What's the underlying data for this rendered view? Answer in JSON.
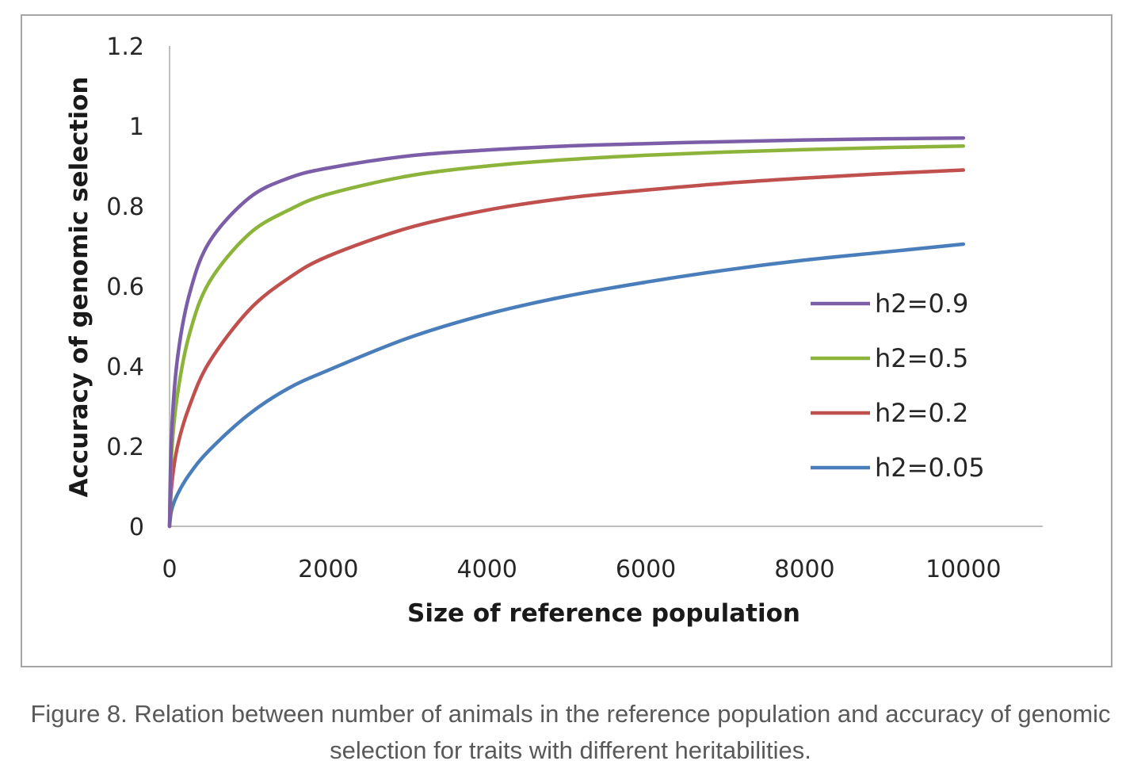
{
  "chart_data": {
    "type": "line",
    "xlabel": "Size of reference population",
    "ylabel": "Accuracy of genomic selection",
    "xlim": [
      0,
      10000
    ],
    "ylim": [
      0,
      1.2
    ],
    "x_ticks": [
      "0",
      "2000",
      "4000",
      "6000",
      "8000",
      "10000"
    ],
    "y_ticks": [
      "0",
      "0.2",
      "0.4",
      "0.6",
      "0.8",
      "1",
      "1.2"
    ],
    "grid": false,
    "legend_position": "right",
    "x": [
      0,
      25,
      100,
      250,
      500,
      1000,
      1500,
      2000,
      3000,
      4000,
      5000,
      6000,
      7000,
      8000,
      9000,
      10000
    ],
    "series": [
      {
        "name": "h2=0.9",
        "color": "#7b5ea7",
        "values": [
          0.0,
          0.23,
          0.42,
          0.58,
          0.71,
          0.82,
          0.87,
          0.895,
          0.925,
          0.94,
          0.95,
          0.956,
          0.961,
          0.965,
          0.968,
          0.97
        ]
      },
      {
        "name": "h2=0.5",
        "color": "#8db43a",
        "values": [
          0.0,
          0.18,
          0.33,
          0.48,
          0.61,
          0.73,
          0.79,
          0.83,
          0.875,
          0.9,
          0.916,
          0.927,
          0.935,
          0.941,
          0.946,
          0.95
        ]
      },
      {
        "name": "h2=0.2",
        "color": "#c0504d",
        "values": [
          0.0,
          0.1,
          0.2,
          0.3,
          0.41,
          0.54,
          0.62,
          0.675,
          0.745,
          0.79,
          0.82,
          0.84,
          0.857,
          0.87,
          0.881,
          0.89
        ]
      },
      {
        "name": "h2=0.05",
        "color": "#4a7ebb",
        "values": [
          0.0,
          0.04,
          0.08,
          0.13,
          0.19,
          0.28,
          0.345,
          0.39,
          0.47,
          0.53,
          0.575,
          0.61,
          0.64,
          0.665,
          0.685,
          0.705
        ]
      }
    ]
  },
  "caption": {
    "line1": "Figure 8. Relation between number of animals in the reference population and accuracy of genomic",
    "line2": "selection for traits with different heritabilities."
  }
}
